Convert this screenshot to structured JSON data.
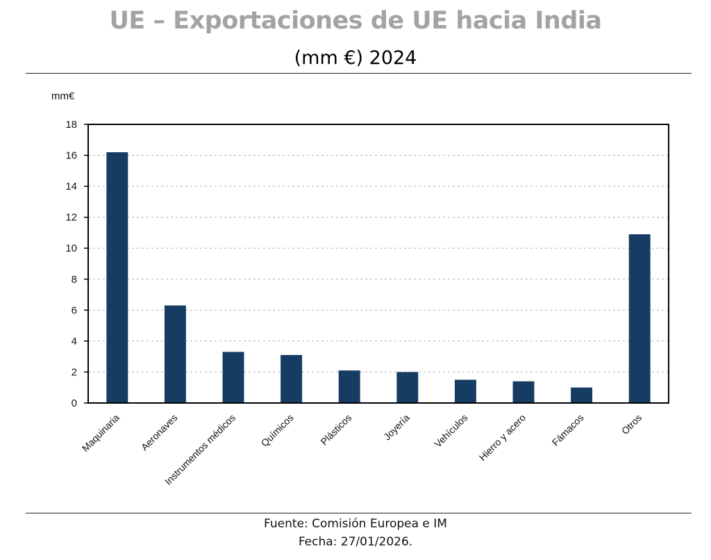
{
  "header": {
    "title": "UE – Exportaciones de UE hacia India",
    "subtitle": "(mm €) 2024"
  },
  "footer": {
    "source": "Fuente: Comisión Europea e IM",
    "date": "Fecha: 27/01/2026."
  },
  "colors": {
    "bar": "#163c63",
    "title": "#a3a3a3"
  },
  "chart_data": {
    "type": "bar",
    "title": "UE – Exportaciones de UE hacia India",
    "subtitle": "(mm €) 2024",
    "ylabel": "mm€",
    "xlabel": "",
    "categories": [
      "Maquinaria",
      "Aeronaves",
      "Instrumentos médicos",
      "Químicos",
      "Plásticos",
      "Joyería",
      "Vehículos",
      "Hierro y acero",
      "Fámacos",
      "Otros"
    ],
    "values": [
      16.2,
      6.3,
      3.3,
      3.1,
      2.1,
      2.0,
      1.5,
      1.4,
      1.0,
      10.9
    ],
    "ylim": [
      0,
      18
    ],
    "yticks": [
      0,
      2,
      4,
      6,
      8,
      10,
      12,
      14,
      16,
      18
    ],
    "grid": true
  }
}
